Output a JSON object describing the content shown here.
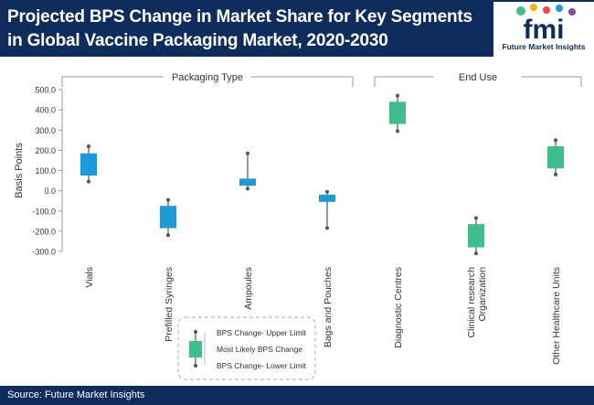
{
  "header": {
    "title": "Projected BPS Change in Market Share for Key Segments in Global Vaccine Packaging Market, 2020-2030",
    "logo_letters": "fmi",
    "logo_text": "Future Market Insights"
  },
  "footer": {
    "source": "Source: Future Market Insights"
  },
  "colors": {
    "header_bg": "#0e2d5c",
    "packaging": "#1a9ad6",
    "end_use": "#3dbf8c",
    "whisker": "#555555"
  },
  "chart_data": {
    "type": "box",
    "ylabel": "Basis Points",
    "ylim": [
      -300,
      500
    ],
    "yticks": [
      500,
      400,
      300,
      200,
      100,
      0,
      -100,
      -200,
      -300
    ],
    "ytick_labels": [
      "500.0",
      "400.0",
      "300.0",
      "200.0",
      "100.0",
      "0.0",
      "-100.0",
      "-200.0",
      "-300.0"
    ],
    "groups": [
      {
        "label": "Packaging Type",
        "categories": [
          "Vials",
          "Prefilled Syringes",
          "Ampoules",
          "Bags and Pouches"
        ]
      },
      {
        "label": "End Use",
        "categories": [
          "Diagnostic Centres",
          "Clinical research Organization",
          "Other Healthcare Units"
        ]
      }
    ],
    "categories": [
      "Vials",
      "Prefilled Syringes",
      "Ampoules",
      "Bags and Pouches",
      "Diagnostic Centres",
      "Clinical research Organization",
      "Other Healthcare Units"
    ],
    "series": [
      {
        "category": "Vials",
        "group": "Packaging Type",
        "upper": 220,
        "box_high": 185,
        "box_low": 75,
        "lower": 45
      },
      {
        "category": "Prefilled Syringes",
        "group": "Packaging Type",
        "upper": -45,
        "box_high": -75,
        "box_low": -185,
        "lower": -220
      },
      {
        "category": "Ampoules",
        "group": "Packaging Type",
        "upper": 185,
        "box_high": 60,
        "box_low": 25,
        "lower": 10
      },
      {
        "category": "Bags and Pouches",
        "group": "Packaging Type",
        "upper": -5,
        "box_high": -20,
        "box_low": -55,
        "lower": -185
      },
      {
        "category": "Diagnostic Centres",
        "group": "End Use",
        "upper": 470,
        "box_high": 440,
        "box_low": 330,
        "lower": 295
      },
      {
        "category": "Clinical research Organization",
        "group": "End Use",
        "upper": -135,
        "box_high": -165,
        "box_low": -280,
        "lower": -310
      },
      {
        "category": "Other Healthcare Units",
        "group": "End Use",
        "upper": 250,
        "box_high": 220,
        "box_low": 110,
        "lower": 80
      }
    ],
    "legend": {
      "upper": "BPS Change- Upper Limit",
      "likely": "Most Likely BPS Change",
      "lower": "BPS Change- Lower Limit"
    },
    "grid": false
  }
}
